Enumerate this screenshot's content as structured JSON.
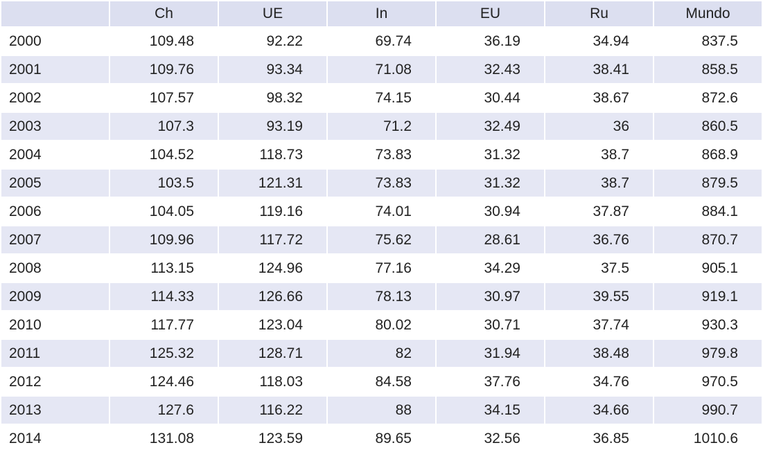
{
  "table": {
    "header": [
      "Ch",
      "UE",
      "In",
      "EU",
      "Ru",
      "Mundo"
    ],
    "rows": [
      [
        "2000",
        "109.48",
        "92.22",
        "69.74",
        "36.19",
        "34.94",
        "837.5"
      ],
      [
        "2001",
        "109.76",
        "93.34",
        "71.08",
        "32.43",
        "38.41",
        "858.5"
      ],
      [
        "2002",
        "107.57",
        "98.32",
        "74.15",
        "30.44",
        "38.67",
        "872.6"
      ],
      [
        "2003",
        "107.3",
        "93.19",
        "71.2",
        "32.49",
        "36",
        "860.5"
      ],
      [
        "2004",
        "104.52",
        "118.73",
        "73.83",
        "31.32",
        "38.7",
        "868.9"
      ],
      [
        "2005",
        "103.5",
        "121.31",
        "73.83",
        "31.32",
        "38.7",
        "879.5"
      ],
      [
        "2006",
        "104.05",
        "119.16",
        "74.01",
        "30.94",
        "37.87",
        "884.1"
      ],
      [
        "2007",
        "109.96",
        "117.72",
        "75.62",
        "28.61",
        "36.76",
        "870.7"
      ],
      [
        "2008",
        "113.15",
        "124.96",
        "77.16",
        "34.29",
        "37.5",
        "905.1"
      ],
      [
        "2009",
        "114.33",
        "126.66",
        "78.13",
        "30.97",
        "39.55",
        "919.1"
      ],
      [
        "2010",
        "117.77",
        "123.04",
        "80.02",
        "30.71",
        "37.74",
        "930.3"
      ],
      [
        "2011",
        "125.32",
        "128.71",
        "82",
        "31.94",
        "38.48",
        "979.8"
      ],
      [
        "2012",
        "124.46",
        "118.03",
        "84.58",
        "37.76",
        "34.76",
        "970.5"
      ],
      [
        "2013",
        "127.6",
        "116.22",
        "88",
        "34.15",
        "34.66",
        "990.7"
      ],
      [
        "2014",
        "131.08",
        "123.59",
        "89.65",
        "32.56",
        "36.85",
        "1010.6"
      ]
    ]
  }
}
